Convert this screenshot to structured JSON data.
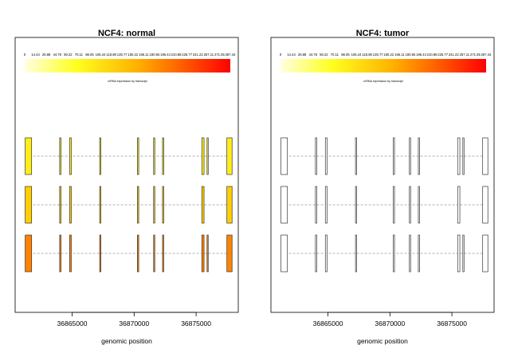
{
  "chart_data": [
    {
      "type": "heatmap",
      "title": "NCF4: normal",
      "xlabel": "genomic position",
      "xlim": [
        36860400,
        36878400
      ],
      "x_ticks": [
        {
          "value": 36865000,
          "label": "36865000"
        },
        {
          "value": 36870000,
          "label": "36870000"
        },
        {
          "value": 36875000,
          "label": "36875000"
        }
      ],
      "color_scale_labels": [
        "0",
        "14.44",
        "28.88",
        "44.78",
        "59.22",
        "70.11",
        "88.05",
        "105.44",
        "118.88",
        "135.77",
        "150.22",
        "166.11",
        "180.55",
        "196.44",
        "210.88",
        "226.77",
        "241.22",
        "257.11",
        "271.55",
        "287.44"
      ],
      "color_scale_caption": "mRNA expression by transcript",
      "exons": [
        {
          "start": 36861210,
          "end": 36861730
        },
        {
          "start": 36863990,
          "end": 36864100
        },
        {
          "start": 36864790,
          "end": 36864930
        },
        {
          "start": 36867220,
          "end": 36867300
        },
        {
          "start": 36870260,
          "end": 36870370
        },
        {
          "start": 36871570,
          "end": 36871640
        },
        {
          "start": 36872290,
          "end": 36872380
        },
        {
          "start": 36875460,
          "end": 36875640
        },
        {
          "start": 36875880,
          "end": 36875960
        },
        {
          "start": 36877480,
          "end": 36877900
        }
      ],
      "transcripts": [
        {
          "exons": [
            0,
            1,
            2,
            3,
            4,
            5,
            6,
            7,
            8,
            9
          ],
          "expression": 20
        },
        {
          "exons": [
            0,
            1,
            2,
            3,
            4,
            5,
            6,
            7,
            9
          ],
          "expression": 55
        },
        {
          "exons": [
            0,
            1,
            2,
            3,
            4,
            5,
            6,
            7,
            8,
            9
          ],
          "expression": 140
        }
      ]
    },
    {
      "type": "heatmap",
      "title": "NCF4: tumor",
      "xlabel": "genomic position",
      "xlim": [
        36860400,
        36878400
      ],
      "x_ticks": [
        {
          "value": 36865000,
          "label": "36865000"
        },
        {
          "value": 36870000,
          "label": "36870000"
        },
        {
          "value": 36875000,
          "label": "36875000"
        }
      ],
      "color_scale_labels": [
        "0",
        "14.44",
        "28.88",
        "44.78",
        "59.22",
        "70.11",
        "88.05",
        "105.44",
        "118.88",
        "135.77",
        "150.22",
        "166.11",
        "180.55",
        "196.44",
        "210.88",
        "226.77",
        "241.22",
        "257.11",
        "271.55",
        "287.44"
      ],
      "color_scale_caption": "mRNA expression by transcript",
      "exons": [
        {
          "start": 36861210,
          "end": 36861730
        },
        {
          "start": 36863990,
          "end": 36864100
        },
        {
          "start": 36864790,
          "end": 36864930
        },
        {
          "start": 36867220,
          "end": 36867300
        },
        {
          "start": 36870260,
          "end": 36870370
        },
        {
          "start": 36871570,
          "end": 36871640
        },
        {
          "start": 36872290,
          "end": 36872380
        },
        {
          "start": 36875460,
          "end": 36875640
        },
        {
          "start": 36875880,
          "end": 36875960
        },
        {
          "start": 36877480,
          "end": 36877900
        }
      ],
      "transcripts": [
        {
          "exons": [
            0,
            1,
            2,
            3,
            4,
            5,
            6,
            7,
            8,
            9
          ],
          "expression": null
        },
        {
          "exons": [
            0,
            1,
            2,
            3,
            4,
            5,
            6,
            7,
            9
          ],
          "expression": null
        },
        {
          "exons": [
            0,
            1,
            2,
            3,
            4,
            5,
            6,
            7,
            8,
            9
          ],
          "expression": null
        }
      ]
    }
  ]
}
